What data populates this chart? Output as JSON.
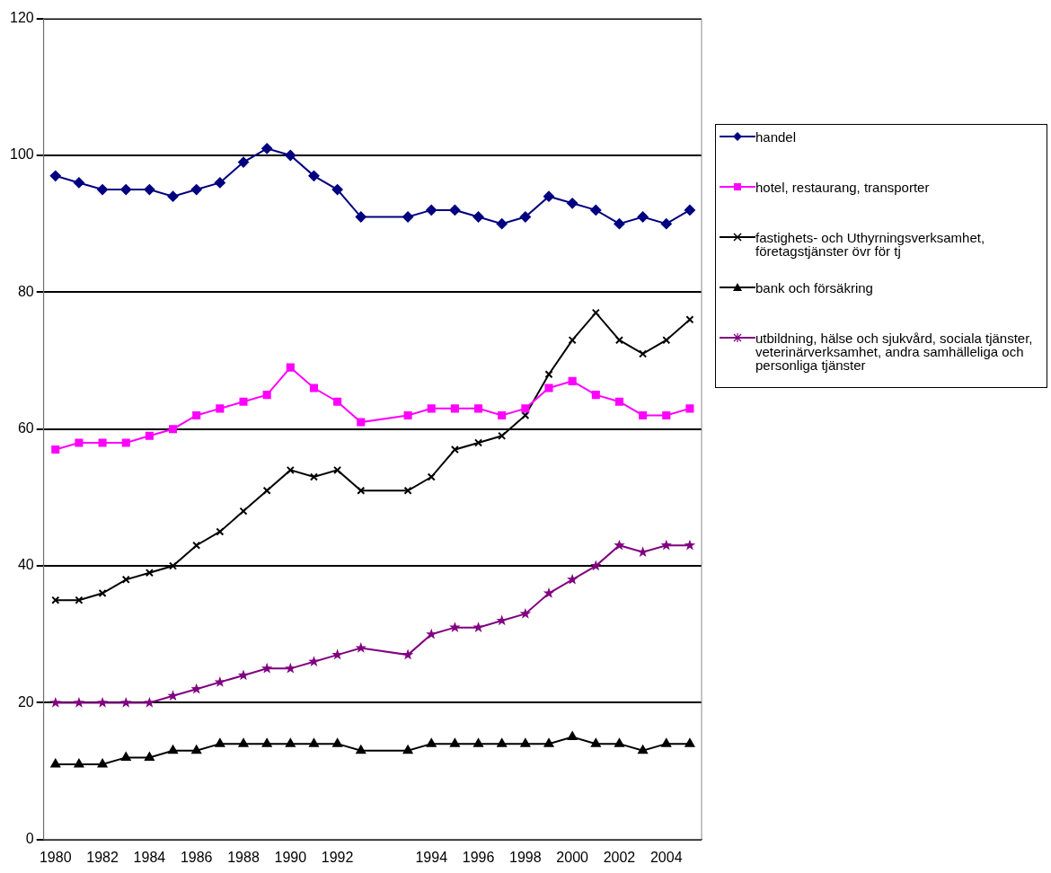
{
  "chart_data": {
    "type": "line",
    "categories": [
      "1980",
      null,
      "1982",
      null,
      "1984",
      null,
      "1986",
      null,
      "1988",
      null,
      "1990",
      null,
      "1992",
      null,
      null,
      null,
      "1994",
      null,
      "1996",
      null,
      "1998",
      null,
      "2000",
      null,
      "2002",
      null,
      "2004",
      null
    ],
    "ylim": [
      0,
      120
    ],
    "yticks": [
      0,
      20,
      40,
      60,
      80,
      100,
      120
    ],
    "grid": "y",
    "legend": "right",
    "series": [
      {
        "name": "handel",
        "color": "#000080",
        "marker": "diamond",
        "values": [
          97,
          96,
          95,
          95,
          95,
          94,
          95,
          96,
          99,
          101,
          100,
          97,
          95,
          91,
          null,
          91,
          92,
          92,
          91,
          90,
          91,
          94,
          93,
          92,
          90,
          91,
          90,
          92
        ]
      },
      {
        "name": "hotel, restaurang, transporter",
        "color": "#ff00ff",
        "marker": "square",
        "values": [
          57,
          58,
          58,
          58,
          59,
          60,
          62,
          63,
          64,
          65,
          69,
          66,
          64,
          61,
          null,
          62,
          63,
          63,
          63,
          62,
          63,
          66,
          67,
          65,
          64,
          62,
          62,
          63
        ]
      },
      {
        "name": "fastighets- och Uthyrningsverksamhet, företagstjänster övr för tj",
        "color": "#000000",
        "marker": "cross",
        "values": [
          35,
          35,
          36,
          38,
          39,
          40,
          43,
          45,
          48,
          51,
          54,
          53,
          54,
          51,
          null,
          51,
          53,
          57,
          58,
          59,
          62,
          68,
          73,
          77,
          73,
          71,
          73,
          76
        ]
      },
      {
        "name": "bank och försäkring",
        "color": "#000000",
        "marker": "triangle",
        "values": [
          11,
          11,
          11,
          12,
          12,
          13,
          13,
          14,
          14,
          14,
          14,
          14,
          14,
          13,
          null,
          13,
          14,
          14,
          14,
          14,
          14,
          14,
          15,
          14,
          14,
          13,
          14,
          14
        ]
      },
      {
        "name": "utbildning, hälse och sjukvård, sociala tjänster, veterinärverksamhet, andra samhälleliga och personliga tjänster",
        "color": "#800080",
        "marker": "star",
        "values": [
          20,
          20,
          20,
          20,
          20,
          21,
          22,
          23,
          24,
          25,
          25,
          26,
          27,
          28,
          null,
          27,
          30,
          31,
          31,
          32,
          33,
          36,
          38,
          40,
          43,
          42,
          43,
          43
        ]
      }
    ]
  }
}
